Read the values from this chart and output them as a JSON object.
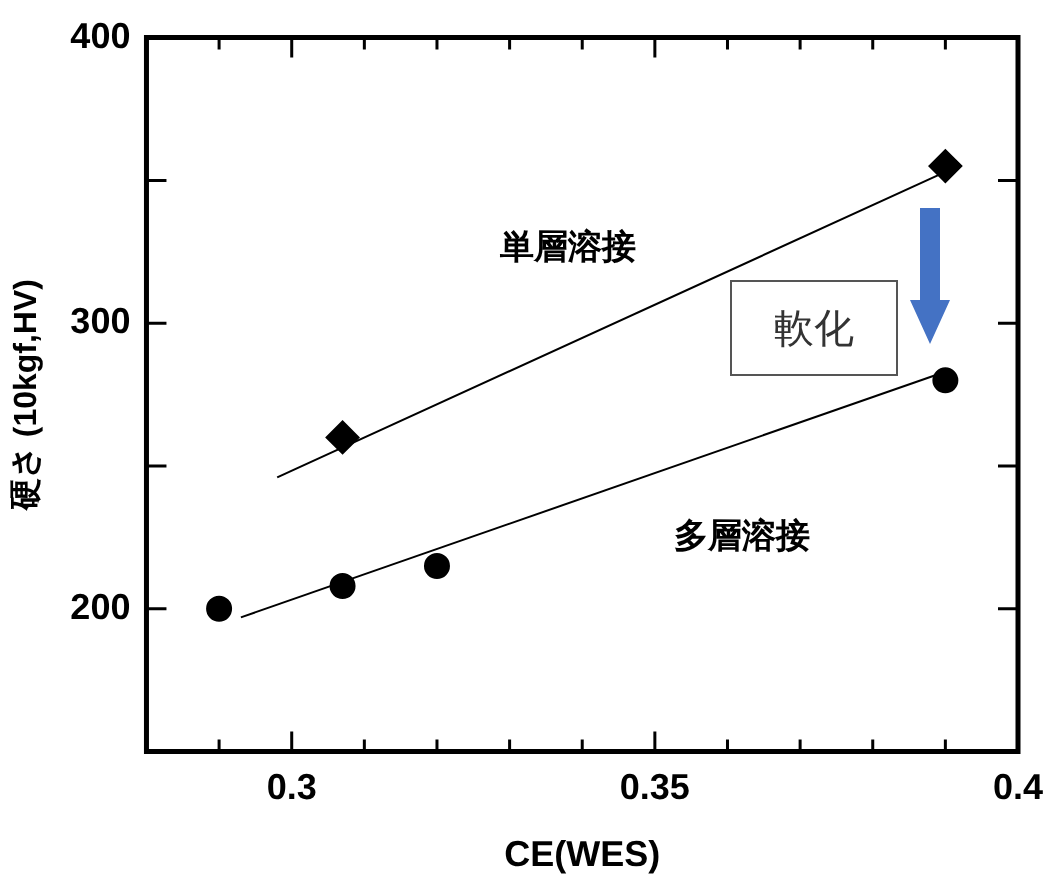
{
  "chart_data": {
    "type": "scatter",
    "xlabel": "CE(WES)",
    "ylabel": "硬さ (10kgf,HV)",
    "xlim": [
      0.28,
      0.4
    ],
    "ylim": [
      150,
      400
    ],
    "xticks": [
      {
        "value": 0.29,
        "label": null
      },
      0.3,
      {
        "value": 0.31,
        "label": null
      },
      {
        "value": 0.32,
        "label": null
      },
      {
        "value": 0.33,
        "label": null
      },
      {
        "value": 0.34,
        "label": null
      },
      0.35,
      {
        "value": 0.36,
        "label": null
      },
      {
        "value": 0.37,
        "label": null
      },
      {
        "value": 0.38,
        "label": null
      },
      {
        "value": 0.39,
        "label": null
      },
      0.4
    ],
    "yticks": [
      200,
      {
        "value": 250,
        "label": null
      },
      300,
      {
        "value": 350,
        "label": null
      },
      400
    ],
    "grid": false,
    "legend": false,
    "series": [
      {
        "marker": "diamond",
        "color": "#000000",
        "x": [
          0.307,
          0.39
        ],
        "values": [
          260,
          355
        ]
      },
      {
        "marker": "circle",
        "color": "#000000",
        "x": [
          0.29,
          0.307,
          0.32,
          0.39
        ],
        "values": [
          200,
          208,
          215,
          280
        ]
      },
      {
        "type": "line",
        "marker": "none",
        "color": "#000000",
        "x": [
          0.298,
          0.39
        ],
        "values": [
          246,
          353
        ]
      },
      {
        "type": "line",
        "marker": "none",
        "color": "#000000",
        "x": [
          0.293,
          0.39
        ],
        "values": [
          197,
          283
        ]
      }
    ],
    "annotations": [
      "単層溶接",
      "多層溶接",
      "軟化"
    ]
  }
}
